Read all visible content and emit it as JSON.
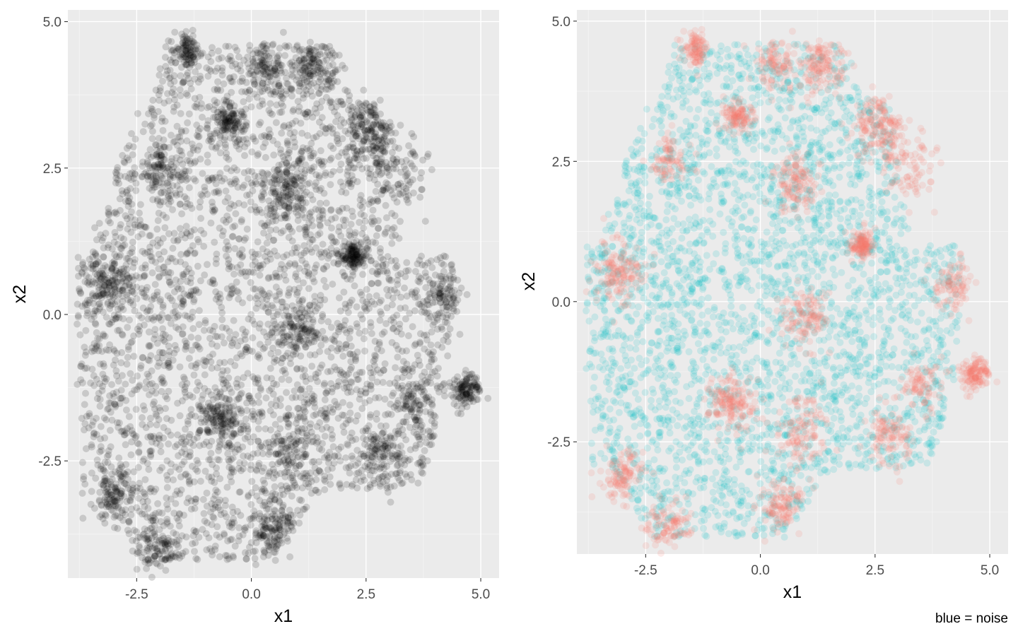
{
  "caption": "blue = noise",
  "colors": {
    "black": "#000000",
    "noise_blue": "#00BFC4",
    "cluster_red": "#F8766D",
    "panel_bg": "#EBEBEB"
  },
  "chart_data": [
    {
      "type": "scatter",
      "title": "",
      "xlabel": "x1",
      "ylabel": "x2",
      "xlim": [
        -4.0,
        5.4
      ],
      "ylim": [
        -4.5,
        5.2
      ],
      "x_ticks": [
        -2.5,
        0.0,
        2.5,
        5.0
      ],
      "x_tick_labels": [
        "-2.5",
        "0.0",
        "2.5",
        "5.0"
      ],
      "y_ticks": [
        -2.5,
        0.0,
        2.5,
        5.0
      ],
      "y_tick_labels": [
        "-2.5",
        "0.0",
        "2.5",
        "5.0"
      ],
      "grid": true,
      "point_color": "#000000",
      "point_alpha": 0.15,
      "point_count_approx": 20000
    },
    {
      "type": "scatter",
      "title": "",
      "xlabel": "x1",
      "ylabel": "x2",
      "xlim": [
        -4.0,
        5.4
      ],
      "ylim": [
        -4.5,
        5.2
      ],
      "x_ticks": [
        -2.5,
        0.0,
        2.5,
        5.0
      ],
      "x_tick_labels": [
        "-2.5",
        "0.0",
        "2.5",
        "5.0"
      ],
      "y_ticks": [
        -2.5,
        0.0,
        2.5,
        5.0
      ],
      "y_tick_labels": [
        "-2.5",
        "0.0",
        "2.5",
        "5.0"
      ],
      "grid": true,
      "point_alpha": 0.15,
      "groups": [
        {
          "role": "noise",
          "color": "#00BFC4"
        },
        {
          "role": "cluster",
          "color": "#F8766D"
        }
      ],
      "dense_regions_approx": [
        [
          -3.1,
          0.5
        ],
        [
          -3.0,
          -3.1
        ],
        [
          -2.0,
          -4.0
        ],
        [
          -2.0,
          2.5
        ],
        [
          -0.5,
          3.3
        ],
        [
          0.3,
          4.2
        ],
        [
          1.3,
          4.2
        ],
        [
          -1.4,
          4.5
        ],
        [
          3.5,
          -1.5
        ],
        [
          2.8,
          -2.4
        ],
        [
          1.0,
          -0.3
        ],
        [
          -0.6,
          -1.8
        ],
        [
          0.9,
          -2.3
        ],
        [
          0.8,
          2.1
        ],
        [
          2.2,
          1.0
        ],
        [
          2.6,
          3.1
        ],
        [
          4.7,
          -1.3
        ],
        [
          4.2,
          0.3
        ],
        [
          0.5,
          -3.6
        ],
        [
          3.2,
          2.4
        ]
      ]
    }
  ]
}
